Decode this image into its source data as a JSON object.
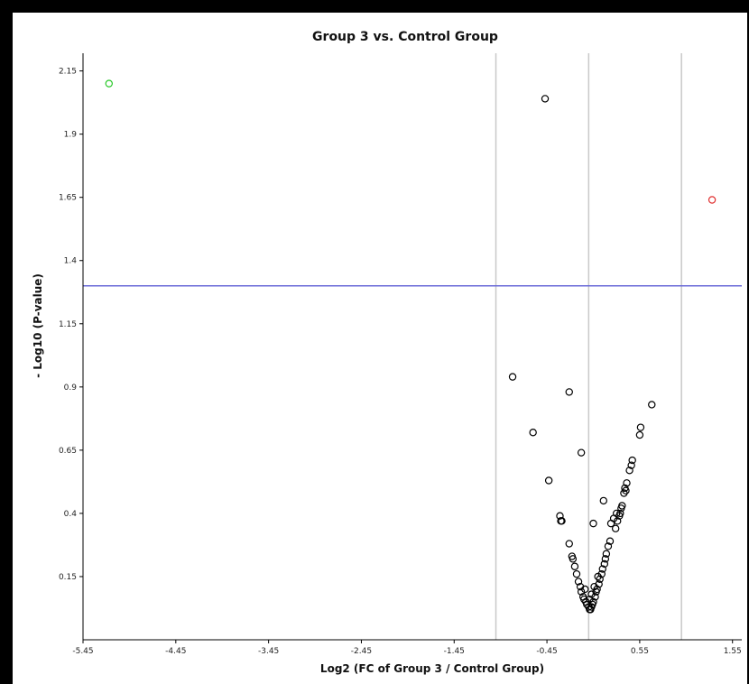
{
  "chart_data": {
    "type": "scatter",
    "title": "Group 3 vs. Control Group",
    "xlabel": "Log2 (FC of Group 3 / Control Group)",
    "ylabel": "- Log10 (P-value)",
    "xlim": [
      -5.45,
      1.65
    ],
    "ylim": [
      -0.1,
      2.22
    ],
    "x_ticks": [
      -5.45,
      -4.45,
      -3.45,
      -2.45,
      -1.45,
      -0.45,
      0.55,
      1.55
    ],
    "x_tick_labels": [
      "-5.45",
      "-4.45",
      "-3.45",
      "-2.45",
      "-1.45",
      "-0.45",
      "0.55",
      "1.55"
    ],
    "y_ticks": [
      0.15,
      0.4,
      0.65,
      0.9,
      1.15,
      1.4,
      1.65,
      1.9,
      2.15
    ],
    "y_tick_labels": [
      "0.15",
      "0.4",
      "0.65",
      "0.9",
      "1.15",
      "1.4",
      "1.65",
      "1.9",
      "2.15"
    ],
    "grid": false,
    "vertical_lines": [
      -1.0,
      0.0,
      1.0
    ],
    "horizontal_line": 1.3,
    "colors": {
      "background": "#ffffff",
      "frame": "#000000",
      "points": "#000000",
      "threshold_line": "#6a6ad8",
      "fold_lines": "#c8c8c8",
      "highlight_up": "#e03030",
      "highlight_down": "#28c828"
    },
    "series": [
      {
        "color": "#000000",
        "points": [
          [
            -0.47,
            2.04
          ],
          [
            -0.82,
            0.94
          ],
          [
            -0.6,
            0.72
          ],
          [
            -0.43,
            0.53
          ],
          [
            -0.31,
            0.39
          ],
          [
            -0.3,
            0.37
          ],
          [
            -0.29,
            0.37
          ],
          [
            -0.21,
            0.88
          ],
          [
            -0.08,
            0.64
          ],
          [
            0.05,
            0.36
          ],
          [
            0.16,
            0.45
          ],
          [
            -0.21,
            0.28
          ],
          [
            -0.18,
            0.23
          ],
          [
            -0.17,
            0.22
          ],
          [
            -0.15,
            0.19
          ],
          [
            -0.13,
            0.16
          ],
          [
            -0.11,
            0.13
          ],
          [
            -0.09,
            0.11
          ],
          [
            -0.08,
            0.09
          ],
          [
            -0.06,
            0.07
          ],
          [
            -0.05,
            0.06
          ],
          [
            -0.03,
            0.05
          ],
          [
            -0.02,
            0.04
          ],
          [
            0.0,
            0.03
          ],
          [
            0.01,
            0.02
          ],
          [
            0.02,
            0.02
          ],
          [
            0.03,
            0.03
          ],
          [
            0.04,
            0.04
          ],
          [
            0.05,
            0.05
          ],
          [
            0.07,
            0.07
          ],
          [
            0.08,
            0.09
          ],
          [
            0.09,
            0.1
          ],
          [
            0.11,
            0.12
          ],
          [
            0.12,
            0.14
          ],
          [
            0.14,
            0.16
          ],
          [
            0.15,
            0.18
          ],
          [
            0.17,
            0.2
          ],
          [
            0.18,
            0.22
          ],
          [
            0.19,
            0.24
          ],
          [
            0.21,
            0.27
          ],
          [
            0.23,
            0.29
          ],
          [
            0.29,
            0.34
          ],
          [
            0.31,
            0.37
          ],
          [
            0.33,
            0.39
          ],
          [
            0.35,
            0.42
          ],
          [
            0.36,
            0.43
          ],
          [
            0.38,
            0.48
          ],
          [
            0.39,
            0.5
          ],
          [
            0.41,
            0.52
          ],
          [
            0.44,
            0.57
          ],
          [
            0.46,
            0.59
          ],
          [
            0.47,
            0.61
          ],
          [
            0.55,
            0.71
          ],
          [
            0.56,
            0.74
          ],
          [
            0.68,
            0.83
          ],
          [
            0.24,
            0.36
          ],
          [
            0.27,
            0.38
          ],
          [
            0.3,
            0.4
          ],
          [
            0.34,
            0.4
          ],
          [
            0.4,
            0.49
          ],
          [
            0.01,
            0.06
          ],
          [
            0.03,
            0.08
          ],
          [
            0.06,
            0.11
          ],
          [
            -0.04,
            0.1
          ],
          [
            0.1,
            0.15
          ]
        ]
      },
      {
        "color": "#e03030",
        "points": [
          [
            1.33,
            1.64
          ]
        ]
      },
      {
        "color": "#28c828",
        "points": [
          [
            -5.17,
            2.1
          ]
        ]
      }
    ]
  }
}
